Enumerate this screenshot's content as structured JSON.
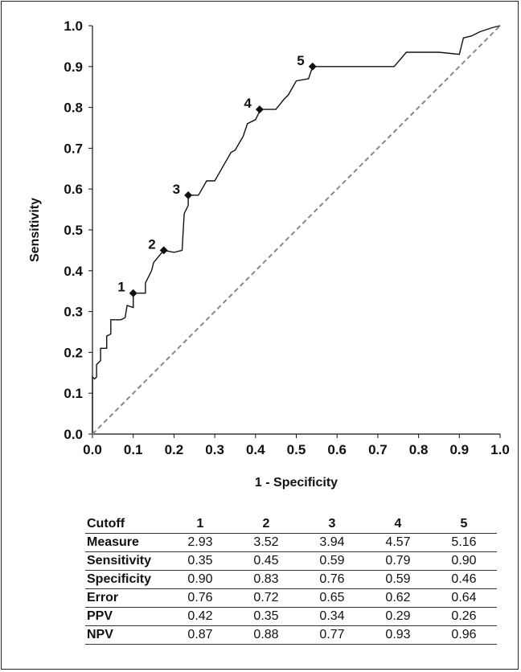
{
  "chart_data": {
    "type": "line",
    "title": "",
    "xlabel": "1 - Specificity",
    "ylabel": "Sensitivity",
    "xlim": [
      0.0,
      1.0
    ],
    "ylim": [
      0.0,
      1.0
    ],
    "x_ticks": [
      "0.0",
      "0.1",
      "0.2",
      "0.3",
      "0.4",
      "0.5",
      "0.6",
      "0.7",
      "0.8",
      "0.9",
      "1.0"
    ],
    "y_ticks": [
      "0.0",
      "0.1",
      "0.2",
      "0.3",
      "0.4",
      "0.5",
      "0.6",
      "0.7",
      "0.8",
      "0.9",
      "1.0"
    ],
    "grid": false,
    "series": [
      {
        "style": "solid black",
        "x": [
          0.0,
          0.0,
          0.005,
          0.01,
          0.01,
          0.02,
          0.02,
          0.035,
          0.035,
          0.045,
          0.045,
          0.07,
          0.08,
          0.085,
          0.1,
          0.1,
          0.13,
          0.13,
          0.145,
          0.15,
          0.175,
          0.2,
          0.22,
          0.225,
          0.235,
          0.235,
          0.26,
          0.28,
          0.3,
          0.32,
          0.34,
          0.35,
          0.37,
          0.38,
          0.4,
          0.41,
          0.415,
          0.45,
          0.47,
          0.48,
          0.5,
          0.53,
          0.54,
          0.6,
          0.65,
          0.7,
          0.74,
          0.77,
          0.8,
          0.85,
          0.9,
          0.91,
          0.93,
          0.95,
          0.98,
          1.0
        ],
        "y": [
          0.0,
          0.14,
          0.135,
          0.14,
          0.17,
          0.18,
          0.21,
          0.21,
          0.24,
          0.245,
          0.28,
          0.28,
          0.285,
          0.315,
          0.31,
          0.345,
          0.345,
          0.37,
          0.4,
          0.42,
          0.45,
          0.445,
          0.45,
          0.54,
          0.56,
          0.585,
          0.585,
          0.62,
          0.62,
          0.655,
          0.69,
          0.695,
          0.73,
          0.76,
          0.77,
          0.79,
          0.795,
          0.795,
          0.82,
          0.83,
          0.865,
          0.87,
          0.9,
          0.9,
          0.9,
          0.9,
          0.9,
          0.935,
          0.935,
          0.935,
          0.93,
          0.97,
          0.975,
          0.985,
          0.995,
          1.0
        ]
      },
      {
        "style": "dashed gray",
        "x": [
          0.0,
          1.0
        ],
        "y": [
          0.0,
          1.0
        ]
      }
    ],
    "cutoff_points": [
      {
        "label": "1",
        "x": 0.1,
        "y": 0.345
      },
      {
        "label": "2",
        "x": 0.175,
        "y": 0.45
      },
      {
        "label": "3",
        "x": 0.235,
        "y": 0.585
      },
      {
        "label": "4",
        "x": 0.41,
        "y": 0.795
      },
      {
        "label": "5",
        "x": 0.54,
        "y": 0.9
      }
    ],
    "colors": {
      "curve": "#111111",
      "reference": "#888888",
      "marker": "#111111"
    }
  },
  "table": {
    "header": [
      "Cutoff",
      "1",
      "2",
      "3",
      "4",
      "5"
    ],
    "rows": [
      {
        "label": "Measure",
        "values": [
          "2.93",
          "3.52",
          "3.94",
          "4.57",
          "5.16"
        ]
      },
      {
        "label": "Sensitivity",
        "values": [
          "0.35",
          "0.45",
          "0.59",
          "0.79",
          "0.90"
        ]
      },
      {
        "label": "Specificity",
        "values": [
          "0.90",
          "0.83",
          "0.76",
          "0.59",
          "0.46"
        ]
      },
      {
        "label": "Error",
        "values": [
          "0.76",
          "0.72",
          "0.65",
          "0.62",
          "0.64"
        ]
      },
      {
        "label": "PPV",
        "values": [
          "0.42",
          "0.35",
          "0.34",
          "0.29",
          "0.26"
        ]
      },
      {
        "label": "NPV",
        "values": [
          "0.87",
          "0.88",
          "0.77",
          "0.93",
          "0.96"
        ]
      }
    ]
  }
}
